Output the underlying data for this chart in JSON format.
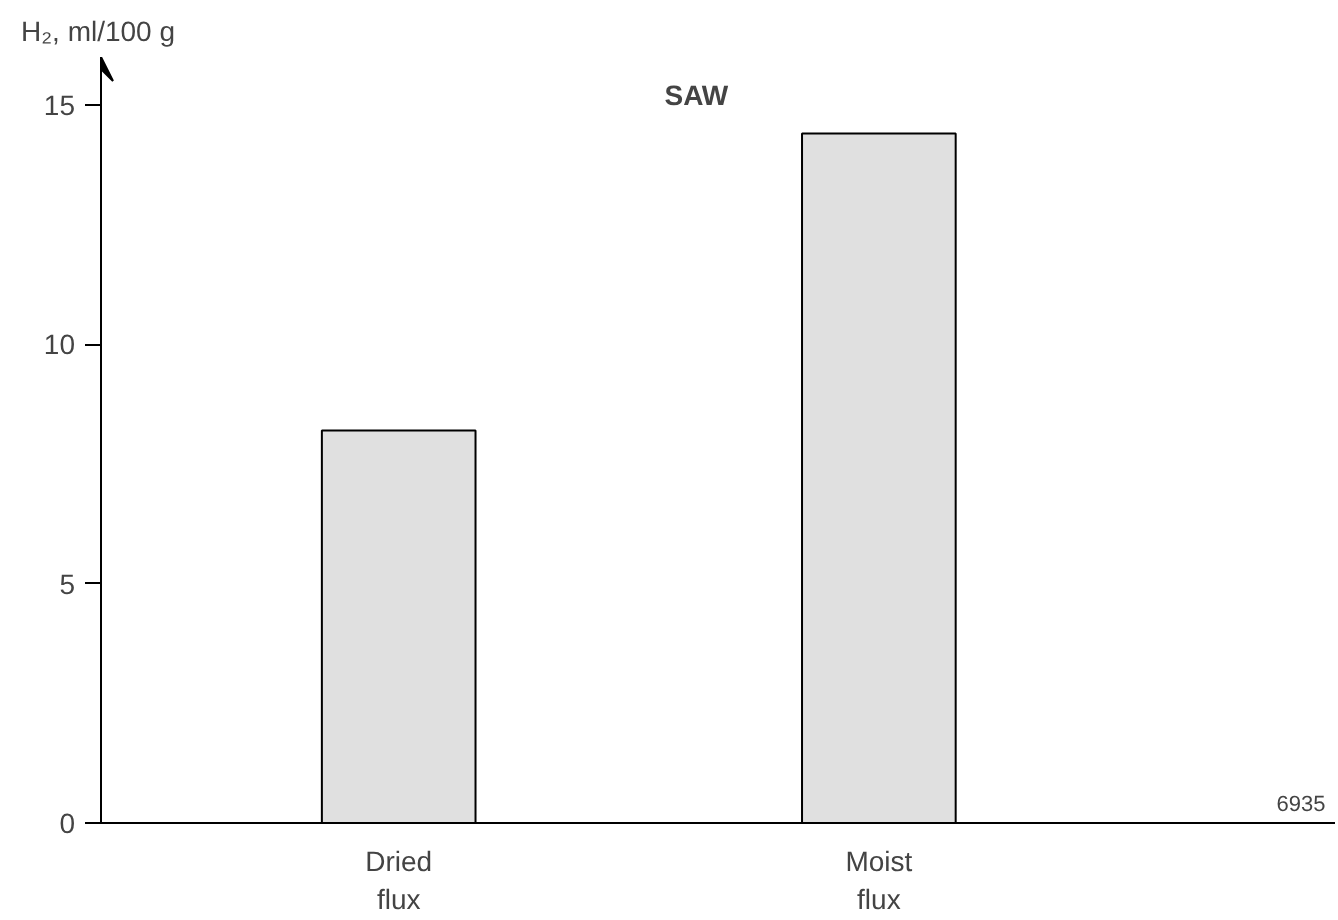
{
  "chart_data": {
    "type": "bar",
    "title": "SAW",
    "ylabel": "H₂, ml/100 g",
    "categories": [
      "Dried\nflux",
      "Moist\nflux"
    ],
    "series": [
      {
        "color": "#e0e0e0",
        "values": [
          8.2,
          14.4
        ]
      }
    ],
    "ylim": [
      0,
      16
    ],
    "yticks": [
      0,
      5,
      10,
      15
    ],
    "grid": false,
    "annotations": [
      "6935"
    ]
  }
}
